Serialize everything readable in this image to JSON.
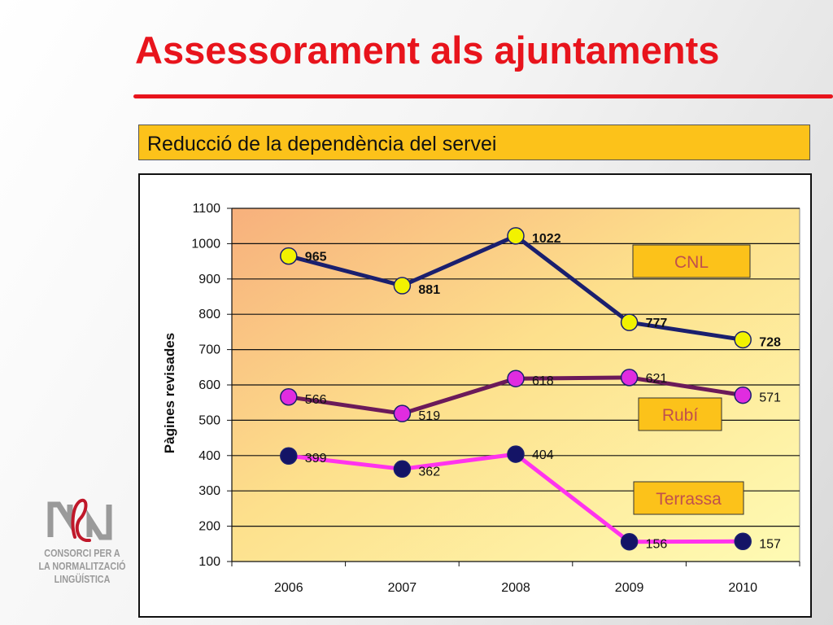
{
  "slide": {
    "title": "Assessorament als ajuntaments",
    "subtitle": "Reducció de la dependència del servei"
  },
  "logo": {
    "lines": [
      "CONSORCI PER A",
      "LA NORMALITZACIÓ",
      "LINGÜÍSTICA"
    ]
  },
  "colors": {
    "title": "#e8141c",
    "subtitle_bg": "#fcc21a",
    "label_box": "#fcc21a",
    "label_text": "#c0504d"
  },
  "chart_data": {
    "type": "line",
    "title": "",
    "xlabel": "",
    "ylabel": "Pàgines revisades",
    "categories": [
      "2006",
      "2007",
      "2008",
      "2009",
      "2010"
    ],
    "ylim": [
      100,
      1100
    ],
    "yticks": [
      100,
      200,
      300,
      400,
      500,
      600,
      700,
      800,
      900,
      1000,
      1100
    ],
    "grid": true,
    "series": [
      {
        "name": "CNL",
        "values": [
          965,
          881,
          1022,
          777,
          728
        ],
        "line_color": "#1a1f6e",
        "marker_color": "#f2f200",
        "bold_labels": true
      },
      {
        "name": "Rubí",
        "values": [
          566,
          519,
          618,
          621,
          571
        ],
        "line_color": "#6b1a5a",
        "marker_color": "#e02ce0",
        "bold_labels": false
      },
      {
        "name": "Terrassa",
        "values": [
          399,
          362,
          404,
          156,
          157
        ],
        "line_color": "#ff33ee",
        "marker_color": "#141466",
        "bold_labels": false
      }
    ]
  }
}
